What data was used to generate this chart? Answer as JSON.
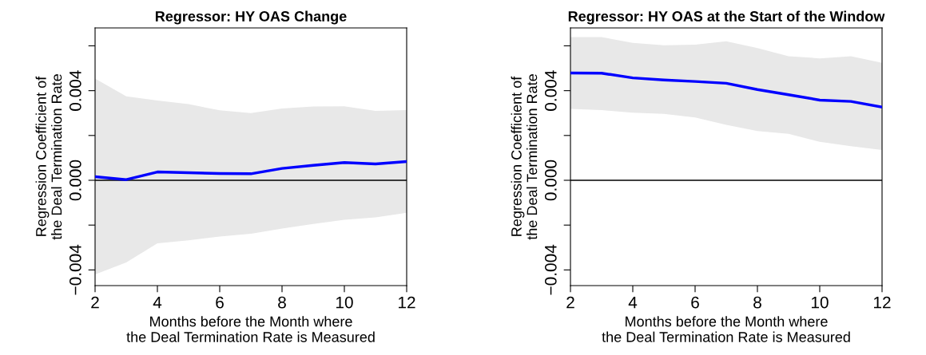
{
  "chart_data": [
    {
      "type": "line",
      "title": "Regressor: HY OAS Change",
      "xlabel": "Months before the Month where\nthe Deal Termination Rate is Measured",
      "ylabel": "Regression Coefficient of\nthe Deal Termination Rate",
      "x": [
        2,
        3,
        4,
        5,
        6,
        7,
        8,
        9,
        10,
        11,
        12
      ],
      "series": [
        {
          "color": "#0000ff",
          "values": [
            0.00016,
            3e-05,
            0.00037,
            0.00034,
            0.0003,
            0.00029,
            0.00053,
            0.00067,
            0.00079,
            0.00073,
            0.00084
          ],
          "lower": [
            -0.0042,
            -0.00367,
            -0.00281,
            -0.00268,
            -0.00251,
            -0.00239,
            -0.00215,
            -0.00195,
            -0.00176,
            -0.00166,
            -0.00145
          ],
          "upper": [
            0.00454,
            0.00375,
            0.00356,
            0.0034,
            0.00312,
            0.003,
            0.0032,
            0.00329,
            0.0033,
            0.0031,
            0.00313
          ]
        }
      ],
      "xlim": [
        2,
        12
      ],
      "xticks": [
        2,
        4,
        6,
        8,
        10,
        12
      ],
      "ylim": [
        -0.0047,
        0.0068
      ],
      "yticks": [
        {
          "value": -0.004,
          "label": "−0.004"
        },
        {
          "value": -0.002,
          "label": null
        },
        {
          "value": 0,
          "label": "0.000"
        },
        {
          "value": 0.002,
          "label": null
        },
        {
          "value": 0.004,
          "label": "0.004"
        },
        {
          "value": 0.006,
          "label": null
        }
      ],
      "ref_lines": [
        {
          "axis": "y",
          "value": 0,
          "color": "#000000"
        }
      ],
      "grid": false,
      "legend": false
    },
    {
      "type": "line",
      "title": "Regressor: HY OAS at the Start of the Window",
      "xlabel": "Months before the Month where\nthe Deal Termination Rate is Measured",
      "ylabel": "Regression Coefficient of\nthe Deal Termination Rate",
      "x": [
        2,
        3,
        4,
        5,
        6,
        7,
        8,
        9,
        10,
        11,
        12
      ],
      "series": [
        {
          "color": "#0000ff",
          "values": [
            0.00479,
            0.00478,
            0.00457,
            0.00448,
            0.00441,
            0.00433,
            0.00405,
            0.00382,
            0.00358,
            0.00352,
            0.00327
          ],
          "lower": [
            0.00319,
            0.00313,
            0.00302,
            0.00296,
            0.0028,
            0.00247,
            0.0022,
            0.00207,
            0.00172,
            0.00152,
            0.00135
          ],
          "upper": [
            0.00639,
            0.00639,
            0.00613,
            0.00603,
            0.00605,
            0.0062,
            0.0059,
            0.00554,
            0.00544,
            0.00554,
            0.00524
          ]
        }
      ],
      "xlim": [
        2,
        12
      ],
      "xticks": [
        2,
        4,
        6,
        8,
        10,
        12
      ],
      "ylim": [
        -0.0047,
        0.0068
      ],
      "yticks": [
        {
          "value": -0.004,
          "label": "−0.004"
        },
        {
          "value": -0.002,
          "label": null
        },
        {
          "value": 0,
          "label": "0.000"
        },
        {
          "value": 0.002,
          "label": null
        },
        {
          "value": 0.004,
          "label": "0.004"
        },
        {
          "value": 0.006,
          "label": null
        }
      ],
      "ref_lines": [
        {
          "axis": "y",
          "value": 0,
          "color": "#000000"
        }
      ],
      "grid": false,
      "legend": false
    }
  ]
}
